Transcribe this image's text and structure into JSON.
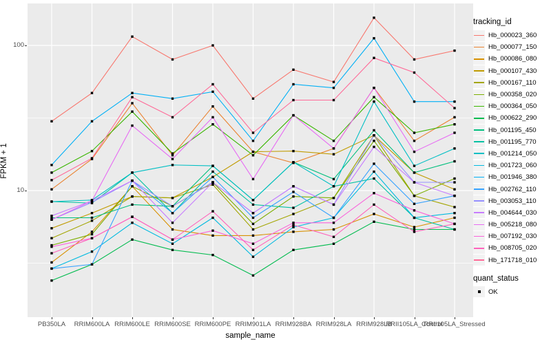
{
  "chart_data": {
    "type": "line",
    "title": "",
    "xlabel": "sample_name",
    "ylabel": "FPKM + 1",
    "y_scale": "log10",
    "y_major_ticks": [
      100,
      10
    ],
    "y_minor_gridlines": [
      31.623,
      3.1623
    ],
    "grid": true,
    "panel_bg": "#EBEBEB",
    "grid_color": "#FFFFFF",
    "marker": "square",
    "marker_color": "#000000",
    "categories": [
      "PB350LA",
      "RRIM600LA",
      "RRIM600LE",
      "RRIM600SE",
      "RRIM600PE",
      "RRIM901LA",
      "RRIM928BA",
      "RRIM928LA",
      "RRIM928LB",
      "RRII105LA_Control",
      "RRII105LA_Stressed"
    ],
    "legend": {
      "tracking_title": "tracking_id",
      "quant_title": "quant_status",
      "quant_value": "OK"
    },
    "series": [
      {
        "name": "Hb_000023_360",
        "color": "#F8766D",
        "values": [
          30,
          47,
          115,
          80,
          100,
          43,
          68,
          56,
          155,
          80,
          92
        ]
      },
      {
        "name": "Hb_000077_150",
        "color": "#EA8331",
        "values": [
          10.2,
          16.5,
          40,
          17.5,
          38,
          18.5,
          15.5,
          19.5,
          51,
          22,
          32
        ]
      },
      {
        "name": "Hb_000086_080",
        "color": "#D89000",
        "values": [
          3.2,
          5.2,
          10.7,
          5.4,
          4.9,
          4.9,
          5.2,
          5.4,
          6.9,
          5.6,
          6.5
        ]
      },
      {
        "name": "Hb_000107_430",
        "color": "#C09B00",
        "values": [
          5.5,
          7.0,
          9.1,
          8.9,
          12.4,
          18.5,
          18.7,
          17.8,
          24,
          13.3,
          10.2
        ]
      },
      {
        "name": "Hb_000167_110",
        "color": "#A3A500",
        "values": [
          4.7,
          6.2,
          9.1,
          8.9,
          11.0,
          5.4,
          6.9,
          8.9,
          24,
          9.2,
          7.7
        ]
      },
      {
        "name": "Hb_000358_020",
        "color": "#7CAE00",
        "values": [
          4.2,
          5.0,
          10.7,
          7.8,
          11.4,
          5.9,
          9.1,
          8.9,
          22,
          9.2,
          12.1
        ]
      },
      {
        "name": "Hb_000364_050",
        "color": "#39B600",
        "values": [
          13.3,
          18.7,
          35,
          18,
          28.6,
          17.5,
          33,
          22,
          44,
          25,
          28.6
        ]
      },
      {
        "name": "Hb_000622_290",
        "color": "#00BB4E",
        "values": [
          2.4,
          3.1,
          4.6,
          3.9,
          3.6,
          2.6,
          3.9,
          4.3,
          6.1,
          5.4,
          5.4
        ]
      },
      {
        "name": "Hb_001195_450",
        "color": "#00BF7D",
        "values": [
          6.5,
          6.5,
          8.0,
          7.8,
          14.8,
          8.6,
          15.7,
          12,
          26,
          13.3,
          15.9
        ]
      },
      {
        "name": "Hb_001195_770",
        "color": "#00C1A3",
        "values": [
          8.4,
          8.2,
          13.3,
          7.0,
          13.5,
          8.0,
          7.6,
          10.7,
          12.1,
          6.5,
          5.4
        ]
      },
      {
        "name": "Hb_001214_050",
        "color": "#00BFC4",
        "values": [
          8.4,
          8.6,
          13.3,
          15,
          14.8,
          8.6,
          15.7,
          10.7,
          41,
          14.8,
          19.5
        ]
      },
      {
        "name": "Hb_001723_060",
        "color": "#00BAE0",
        "values": [
          2.9,
          3.8,
          6.0,
          4.3,
          6.5,
          3.5,
          5.6,
          6.5,
          13.5,
          6.5,
          7.0
        ]
      },
      {
        "name": "Hb_001946_380",
        "color": "#00B0F6",
        "values": [
          15,
          30,
          47,
          43,
          48,
          22,
          54,
          51,
          112,
          41,
          41
        ]
      },
      {
        "name": "Hb_002762_110",
        "color": "#35A2FF",
        "values": [
          2.9,
          3.1,
          11.7,
          7.0,
          12.4,
          6.5,
          9.8,
          6.5,
          15.3,
          8.1,
          9.2
        ]
      },
      {
        "name": "Hb_003053_110",
        "color": "#9590FF",
        "values": [
          6.3,
          8.3,
          11.7,
          7.8,
          11.4,
          7.0,
          10.7,
          8.0,
          24,
          11.4,
          11.4
        ]
      },
      {
        "name": "Hb_004644_030",
        "color": "#C77CFF",
        "values": [
          6.7,
          8.5,
          11.7,
          6.0,
          11.4,
          7.0,
          10.7,
          8.0,
          20,
          11.4,
          9.2
        ]
      },
      {
        "name": "Hb_005218_080",
        "color": "#E76BF3",
        "values": [
          6.3,
          8.5,
          28,
          16.5,
          32,
          12,
          33,
          19.5,
          51,
          18.5,
          25
        ]
      },
      {
        "name": "Hb_007192_030",
        "color": "#FA62DB",
        "values": [
          4.1,
          4.7,
          6.6,
          4.6,
          5.3,
          4.3,
          6.0,
          6.0,
          9.6,
          7.3,
          5.9
        ]
      },
      {
        "name": "Hb_008705_020",
        "color": "#FF62BC",
        "values": [
          3.7,
          4.7,
          6.6,
          4.6,
          7.2,
          3.9,
          5.8,
          4.8,
          8.0,
          5.2,
          5.9
        ]
      },
      {
        "name": "Hb_171718_010",
        "color": "#FF6A98",
        "values": [
          11.8,
          16.7,
          44,
          32,
          54,
          25,
          42,
          42,
          82,
          65,
          37
        ]
      }
    ]
  }
}
